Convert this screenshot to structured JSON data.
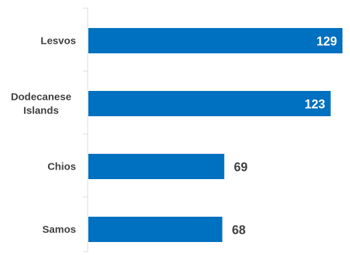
{
  "chart_data": {
    "type": "bar",
    "orientation": "horizontal",
    "categories": [
      "Lesvos",
      "Dodecanese Islands",
      "Chios",
      "Samos"
    ],
    "category_lines": [
      [
        "Lesvos"
      ],
      [
        "Dodecanese",
        "Islands"
      ],
      [
        "Chios"
      ],
      [
        "Samos"
      ]
    ],
    "values": [
      129,
      123,
      69,
      68
    ],
    "value_labels": [
      "129",
      "123",
      "69",
      "68"
    ],
    "xlim": [
      0,
      129
    ],
    "grid": false,
    "legend": "none",
    "colors": {
      "bar": "#0070c0",
      "axis": "#d9d9d9",
      "label_inside": "#ffffff",
      "label_outside": "#404040"
    }
  }
}
